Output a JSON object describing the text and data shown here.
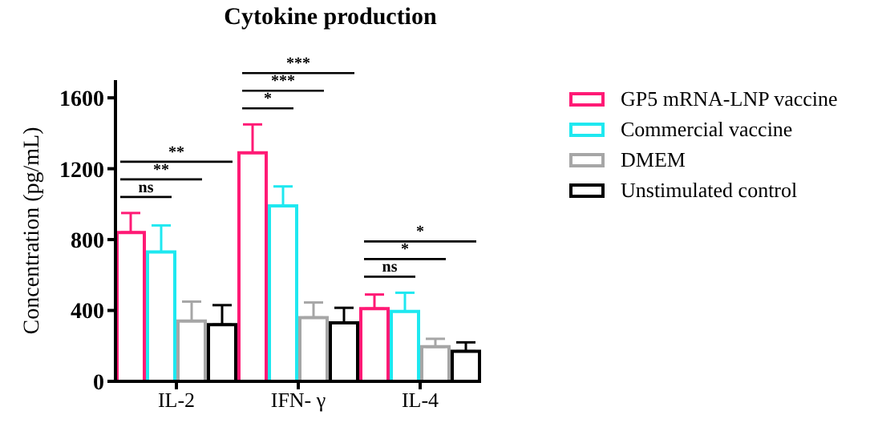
{
  "chart_data": {
    "type": "bar",
    "title": "Cytokine production",
    "ylabel": "Concentration (pg/mL)",
    "categories": [
      "IL-2",
      "IFN- γ",
      "IL-4"
    ],
    "series": [
      {
        "name": "GP5 mRNA-LNP vaccine",
        "color": "#ff1a75",
        "values": [
          840,
          1290,
          410
        ],
        "errors": [
          [
            840,
            950
          ],
          [
            1290,
            1450
          ],
          [
            410,
            490
          ]
        ]
      },
      {
        "name": "Commercial vaccine",
        "color": "#1ee8f0",
        "values": [
          730,
          990,
          395
        ],
        "errors": [
          [
            730,
            880
          ],
          [
            990,
            1100
          ],
          [
            395,
            500
          ]
        ]
      },
      {
        "name": "DMEM",
        "color": "#a6a6a6",
        "values": [
          340,
          360,
          195
        ],
        "errors": [
          [
            340,
            450
          ],
          [
            360,
            445
          ],
          [
            195,
            240
          ]
        ]
      },
      {
        "name": "Unstimulated control",
        "color": "#000000",
        "values": [
          320,
          330,
          170
        ],
        "errors": [
          [
            320,
            430
          ],
          [
            330,
            415
          ],
          [
            170,
            220
          ]
        ]
      }
    ],
    "ylim": [
      0,
      1700
    ],
    "yticks": [
      0,
      400,
      800,
      1200,
      1600
    ],
    "grid": false,
    "legend": "right",
    "annotations": [
      "ns",
      "**",
      "**",
      "*",
      "***",
      "***",
      "ns",
      "*",
      "*"
    ]
  }
}
